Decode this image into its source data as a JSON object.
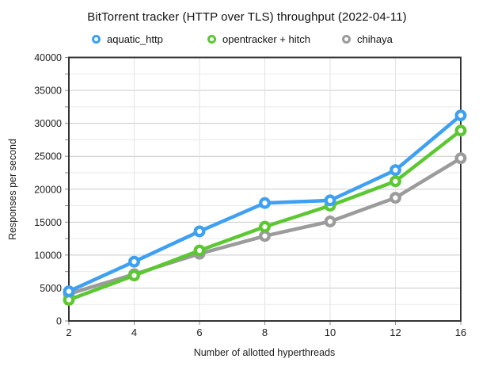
{
  "title": "BitTorrent tracker (HTTP over TLS) throughput (2022-04-11)",
  "colors": {
    "aquatic_http": "#3EA0F2",
    "opentracker_hitch": "#5BC832",
    "chihaya": "#9B9B9B",
    "grid_major": "#c9c9c9",
    "grid_minor": "#e9e9e9",
    "grid_vertical": "#e3e3e3",
    "axis_border": "#333333",
    "tick": "#8a8a8a",
    "text": "#1c1c1c"
  },
  "chart_data": {
    "type": "line",
    "title": "BitTorrent tracker (HTTP over TLS) throughput (2022-04-11)",
    "xlabel": "Number of allotted hyperthreads",
    "ylabel": "Responses per second",
    "x": [
      2,
      4,
      6,
      8,
      10,
      12,
      16
    ],
    "x_tick_labels": [
      "2",
      "4",
      "6",
      "8",
      "10",
      "12",
      "16"
    ],
    "x_as_categories": true,
    "ylim": [
      0,
      40000
    ],
    "y_major_step": 5000,
    "y_minor_step": 2500,
    "y_tick_labels": [
      "0",
      "5000",
      "10000",
      "15000",
      "20000",
      "25000",
      "30000",
      "35000",
      "40000"
    ],
    "grid": true,
    "legend_position": "top",
    "marker_style": "open-circle",
    "series": [
      {
        "name": "aquatic_http",
        "color": "#3EA0F2",
        "values": [
          4500,
          9000,
          13600,
          17900,
          18300,
          22900,
          31200
        ]
      },
      {
        "name": "opentracker + hitch",
        "color": "#5BC832",
        "values": [
          3200,
          6900,
          10700,
          14300,
          17500,
          21200,
          28900
        ]
      },
      {
        "name": "chihaya",
        "color": "#9B9B9B",
        "values": [
          4100,
          7100,
          10200,
          12900,
          15100,
          18700,
          24700
        ]
      }
    ]
  }
}
